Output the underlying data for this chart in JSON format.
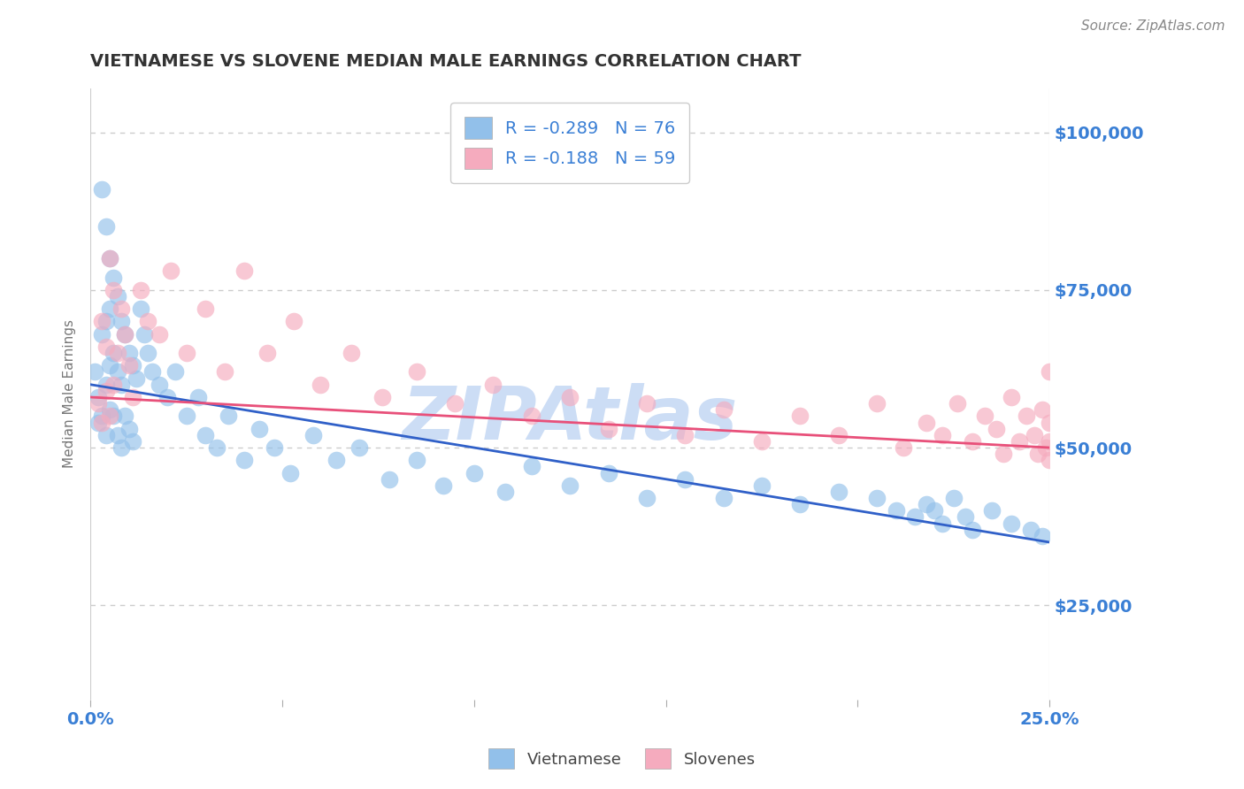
{
  "title": "VIETNAMESE VS SLOVENE MEDIAN MALE EARNINGS CORRELATION CHART",
  "source_text": "Source: ZipAtlas.com",
  "ylabel": "Median Male Earnings",
  "x_min": 0.0,
  "x_max": 0.25,
  "y_min": 10000,
  "y_max": 107000,
  "yticks": [
    25000,
    50000,
    75000,
    100000
  ],
  "ytick_labels": [
    "$25,000",
    "$50,000",
    "$75,000",
    "$100,000"
  ],
  "xticks": [
    0.0,
    0.05,
    0.1,
    0.15,
    0.2,
    0.25
  ],
  "xtick_labels": [
    "0.0%",
    "",
    "",
    "",
    "",
    "25.0%"
  ],
  "r_vietnamese": -0.289,
  "n_vietnamese": 76,
  "r_slovene": -0.188,
  "n_slovene": 59,
  "viet_color": "#92C0EA",
  "slovene_color": "#F5ABBE",
  "viet_line_color": "#3060C8",
  "slovene_line_color": "#E8507A",
  "watermark": "ZIPAtlas",
  "watermark_color": "#CCDDF5",
  "background_color": "#FFFFFF",
  "grid_color": "#CCCCCC",
  "title_color": "#333333",
  "tick_label_color": "#3A7FD5",
  "viet_scatter_x": [
    0.001,
    0.002,
    0.002,
    0.003,
    0.003,
    0.003,
    0.004,
    0.004,
    0.004,
    0.004,
    0.005,
    0.005,
    0.005,
    0.005,
    0.006,
    0.006,
    0.006,
    0.007,
    0.007,
    0.007,
    0.008,
    0.008,
    0.008,
    0.009,
    0.009,
    0.01,
    0.01,
    0.011,
    0.011,
    0.012,
    0.013,
    0.014,
    0.015,
    0.016,
    0.018,
    0.02,
    0.022,
    0.025,
    0.028,
    0.03,
    0.033,
    0.036,
    0.04,
    0.044,
    0.048,
    0.052,
    0.058,
    0.064,
    0.07,
    0.078,
    0.085,
    0.092,
    0.1,
    0.108,
    0.115,
    0.125,
    0.135,
    0.145,
    0.155,
    0.165,
    0.175,
    0.185,
    0.195,
    0.205,
    0.21,
    0.215,
    0.218,
    0.22,
    0.222,
    0.225,
    0.228,
    0.23,
    0.235,
    0.24,
    0.245,
    0.248
  ],
  "viet_scatter_y": [
    62000,
    58000,
    54000,
    91000,
    68000,
    55000,
    85000,
    70000,
    60000,
    52000,
    80000,
    72000,
    63000,
    56000,
    77000,
    65000,
    55000,
    74000,
    62000,
    52000,
    70000,
    60000,
    50000,
    68000,
    55000,
    65000,
    53000,
    63000,
    51000,
    61000,
    72000,
    68000,
    65000,
    62000,
    60000,
    58000,
    62000,
    55000,
    58000,
    52000,
    50000,
    55000,
    48000,
    53000,
    50000,
    46000,
    52000,
    48000,
    50000,
    45000,
    48000,
    44000,
    46000,
    43000,
    47000,
    44000,
    46000,
    42000,
    45000,
    42000,
    44000,
    41000,
    43000,
    42000,
    40000,
    39000,
    41000,
    40000,
    38000,
    42000,
    39000,
    37000,
    40000,
    38000,
    37000,
    36000
  ],
  "slovene_scatter_x": [
    0.002,
    0.003,
    0.003,
    0.004,
    0.004,
    0.005,
    0.005,
    0.006,
    0.006,
    0.007,
    0.008,
    0.009,
    0.01,
    0.011,
    0.013,
    0.015,
    0.018,
    0.021,
    0.025,
    0.03,
    0.035,
    0.04,
    0.046,
    0.053,
    0.06,
    0.068,
    0.076,
    0.085,
    0.095,
    0.105,
    0.115,
    0.125,
    0.135,
    0.145,
    0.155,
    0.165,
    0.175,
    0.185,
    0.195,
    0.205,
    0.212,
    0.218,
    0.222,
    0.226,
    0.23,
    0.233,
    0.236,
    0.238,
    0.24,
    0.242,
    0.244,
    0.246,
    0.247,
    0.248,
    0.249,
    0.25,
    0.25,
    0.25,
    0.25
  ],
  "slovene_scatter_y": [
    57000,
    70000,
    54000,
    66000,
    59000,
    80000,
    55000,
    75000,
    60000,
    65000,
    72000,
    68000,
    63000,
    58000,
    75000,
    70000,
    68000,
    78000,
    65000,
    72000,
    62000,
    78000,
    65000,
    70000,
    60000,
    65000,
    58000,
    62000,
    57000,
    60000,
    55000,
    58000,
    53000,
    57000,
    52000,
    56000,
    51000,
    55000,
    52000,
    57000,
    50000,
    54000,
    52000,
    57000,
    51000,
    55000,
    53000,
    49000,
    58000,
    51000,
    55000,
    52000,
    49000,
    56000,
    50000,
    54000,
    51000,
    48000,
    62000
  ]
}
